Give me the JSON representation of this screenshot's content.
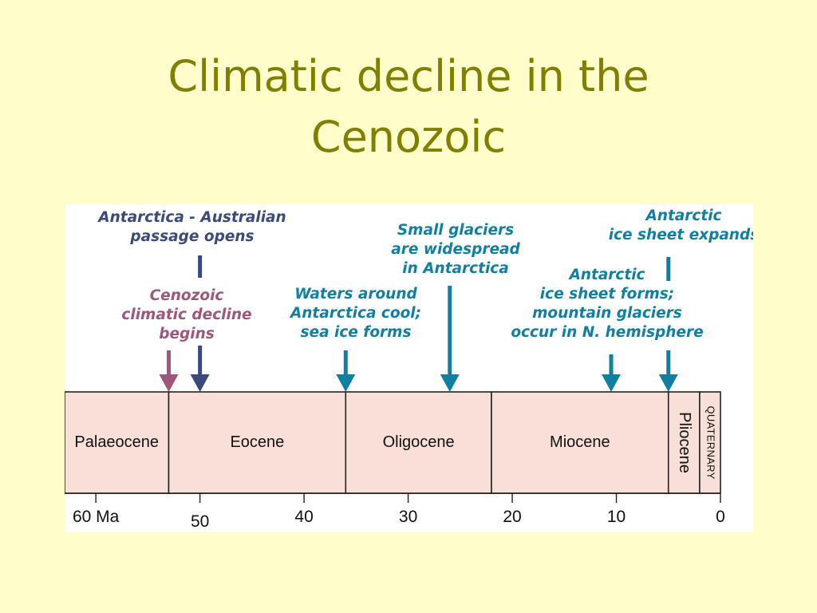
{
  "slide": {
    "title_lines": [
      "Climatic decline in the",
      "Cenozoic"
    ]
  },
  "colors": {
    "background": "#ffffcc",
    "title": "#808000",
    "period_fill": "#f8e0d8",
    "navy": "#3b4a7a",
    "mauve": "#a0567c",
    "teal": "#117f9f"
  },
  "timeline": {
    "max_ma": 63,
    "min_ma": 0,
    "ticks": [
      {
        "ma": 60,
        "label": "60 Ma"
      },
      {
        "ma": 50,
        "label": "50"
      },
      {
        "ma": 40,
        "label": "40"
      },
      {
        "ma": 30,
        "label": "30"
      },
      {
        "ma": 20,
        "label": "20"
      },
      {
        "ma": 10,
        "label": "10"
      },
      {
        "ma": 0,
        "label": "0"
      }
    ],
    "periods": [
      {
        "name": "Palaeocene",
        "start_ma": 63,
        "end_ma": 53,
        "vertical": false
      },
      {
        "name": "Eocene",
        "start_ma": 53,
        "end_ma": 36,
        "vertical": false
      },
      {
        "name": "Oligocene",
        "start_ma": 36,
        "end_ma": 22,
        "vertical": false
      },
      {
        "name": "Miocene",
        "start_ma": 22,
        "end_ma": 5,
        "vertical": false
      },
      {
        "name": "Pliocene",
        "start_ma": 5,
        "end_ma": 2,
        "vertical": true
      },
      {
        "name": "QUATERNARY",
        "start_ma": 2,
        "end_ma": 0,
        "vertical": true
      }
    ]
  },
  "events": [
    {
      "id": "cenozoic-decline",
      "ma": 53,
      "color": "mauve",
      "lines": [
        "Cenozoic",
        "climatic decline",
        "begins"
      ]
    },
    {
      "id": "antarctica-australia-passage",
      "ma": 50,
      "color": "navy",
      "broken": true,
      "lines": [
        "Antarctica - Australian",
        "passage opens"
      ]
    },
    {
      "id": "waters-cool",
      "ma": 36,
      "color": "teal",
      "lines": [
        "Waters around",
        "Antarctica cool;",
        "sea ice forms"
      ]
    },
    {
      "id": "small-glaciers",
      "ma": 26,
      "color": "teal",
      "lines": [
        "Small glaciers",
        "are widespread",
        "in Antarctica"
      ]
    },
    {
      "id": "ice-sheet-forms",
      "ma": 10.5,
      "color": "teal",
      "lines": [
        "Antarctic",
        "ice sheet forms;",
        "mountain glaciers",
        "occur in N. hemisphere"
      ]
    },
    {
      "id": "ice-sheet-expands",
      "ma": 5,
      "color": "teal",
      "broken": true,
      "lines": [
        "Antarctic",
        "ice sheet expands"
      ]
    }
  ]
}
